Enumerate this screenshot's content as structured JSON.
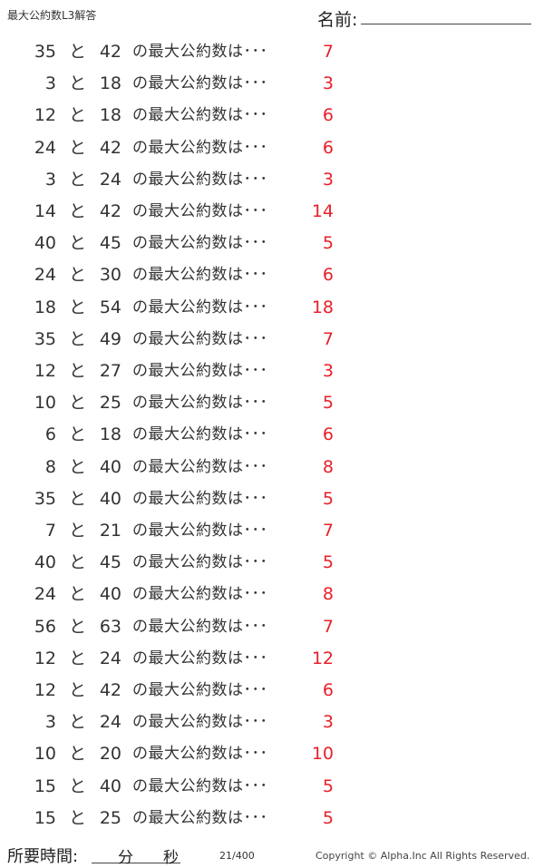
{
  "header": {
    "title": "最大公約数L3解答",
    "name_label": "名前:"
  },
  "connector": "と",
  "question_suffix": "の最大公約数は･･･",
  "problems": [
    {
      "a": "35",
      "b": "42",
      "answer": "7"
    },
    {
      "a": "3",
      "b": "18",
      "answer": "3"
    },
    {
      "a": "12",
      "b": "18",
      "answer": "6"
    },
    {
      "a": "24",
      "b": "42",
      "answer": "6"
    },
    {
      "a": "3",
      "b": "24",
      "answer": "3"
    },
    {
      "a": "14",
      "b": "42",
      "answer": "14"
    },
    {
      "a": "40",
      "b": "45",
      "answer": "5"
    },
    {
      "a": "24",
      "b": "30",
      "answer": "6"
    },
    {
      "a": "18",
      "b": "54",
      "answer": "18"
    },
    {
      "a": "35",
      "b": "49",
      "answer": "7"
    },
    {
      "a": "12",
      "b": "27",
      "answer": "3"
    },
    {
      "a": "10",
      "b": "25",
      "answer": "5"
    },
    {
      "a": "6",
      "b": "18",
      "answer": "6"
    },
    {
      "a": "8",
      "b": "40",
      "answer": "8"
    },
    {
      "a": "35",
      "b": "40",
      "answer": "5"
    },
    {
      "a": "7",
      "b": "21",
      "answer": "7"
    },
    {
      "a": "40",
      "b": "45",
      "answer": "5"
    },
    {
      "a": "24",
      "b": "40",
      "answer": "8"
    },
    {
      "a": "56",
      "b": "63",
      "answer": "7"
    },
    {
      "a": "12",
      "b": "24",
      "answer": "12"
    },
    {
      "a": "12",
      "b": "42",
      "answer": "6"
    },
    {
      "a": "3",
      "b": "24",
      "answer": "3"
    },
    {
      "a": "10",
      "b": "20",
      "answer": "10"
    },
    {
      "a": "15",
      "b": "40",
      "answer": "5"
    },
    {
      "a": "15",
      "b": "25",
      "answer": "5"
    }
  ],
  "colors": {
    "answer": "#e8202a"
  },
  "footer": {
    "time_label": "所要時間:",
    "minutes_label": "分",
    "seconds_label": "秒",
    "page_number": "21/400",
    "copyright": "Copyright ©  Alpha.Inc All Rights Reserved."
  }
}
